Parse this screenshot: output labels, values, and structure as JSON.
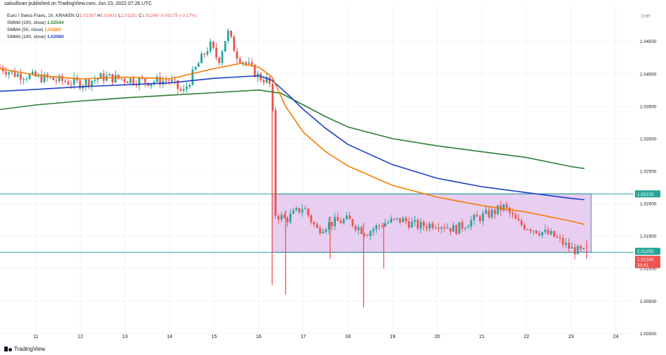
{
  "header": {
    "published_by": "salsullivan published on TradingView.com, Jun 23, 2022 07:26 UTC"
  },
  "legend": {
    "symbol": "Euro / Swiss Franc, 1h, KRAKEN",
    "ohlc": {
      "o_label": "O",
      "o": "1.01397",
      "h_label": "H",
      "h": "1.01431",
      "l_label": "L",
      "l": "1.01151",
      "c_label": "C",
      "c": "1.01240",
      "change": "-0.00175 (-0.17%)"
    },
    "ma200": {
      "label": "SMMA (200, close)",
      "value": "1.02544",
      "color": "#2e7d32"
    },
    "ma50": {
      "label": "SMMA (50, close)",
      "value": "1.01683",
      "color": "#f57c00"
    },
    "ma100": {
      "label": "SMMA (100, close)",
      "value": "1.02060",
      "color": "#1e40c8"
    }
  },
  "currency_label": "CHF",
  "footer": {
    "brand": "TradingView"
  },
  "colors": {
    "bull": "#26a69a",
    "bear": "#ef5350",
    "level": "#26a69a",
    "box_fill": "#e4c5ef",
    "box_border": "#5b7fa6",
    "axis_text": "#131722"
  },
  "chart_data": {
    "type": "line",
    "title": "Euro / Swiss Franc, 1h, KRAKEN",
    "x_ticks": [
      "11",
      "12",
      "13",
      "14",
      "15",
      "16",
      "17",
      "18",
      "19",
      "20",
      "21",
      "22",
      "23",
      "24"
    ],
    "y_ticks": [
      "1.04500",
      "1.04000",
      "1.03500",
      "1.03000",
      "1.02500",
      "1.02000",
      "1.01500",
      "1.01000",
      "1.00500",
      "1.00000"
    ],
    "ylim": [
      0.9995,
      1.0505
    ],
    "xlim": [
      10.2,
      24.4
    ],
    "price_labels": {
      "level_high": "1.02150",
      "ma_upper": "1.01255",
      "last": "1.01240",
      "countdown": "33:41"
    },
    "levels": [
      1.0215,
      1.0125
    ],
    "range_box": {
      "x_from": 16.3,
      "x_to": 23.45,
      "top": 1.0215,
      "bottom": 1.0125
    },
    "price_series": [
      {
        "x": 10.2,
        "y": 1.041
      },
      {
        "x": 10.5,
        "y": 1.04
      },
      {
        "x": 11.0,
        "y": 1.0395
      },
      {
        "x": 11.5,
        "y": 1.039
      },
      {
        "x": 12.0,
        "y": 1.0385
      },
      {
        "x": 12.5,
        "y": 1.0395
      },
      {
        "x": 13.0,
        "y": 1.0392
      },
      {
        "x": 13.5,
        "y": 1.0388
      },
      {
        "x": 14.0,
        "y": 1.039
      },
      {
        "x": 14.3,
        "y": 1.037
      },
      {
        "x": 14.6,
        "y": 1.041
      },
      {
        "x": 14.9,
        "y": 1.0445
      },
      {
        "x": 15.1,
        "y": 1.042
      },
      {
        "x": 15.3,
        "y": 1.0465
      },
      {
        "x": 15.5,
        "y": 1.043
      },
      {
        "x": 15.8,
        "y": 1.041
      },
      {
        "x": 16.0,
        "y": 1.0395
      },
      {
        "x": 16.2,
        "y": 1.039
      },
      {
        "x": 16.3,
        "y": 1.0375
      },
      {
        "x": 16.35,
        "y": 1.0185
      },
      {
        "x": 16.6,
        "y": 1.0175
      },
      {
        "x": 17.0,
        "y": 1.0195
      },
      {
        "x": 17.3,
        "y": 1.016
      },
      {
        "x": 17.6,
        "y": 1.017
      },
      {
        "x": 18.0,
        "y": 1.0175
      },
      {
        "x": 18.4,
        "y": 1.0155
      },
      {
        "x": 18.8,
        "y": 1.017
      },
      {
        "x": 19.2,
        "y": 1.0175
      },
      {
        "x": 19.6,
        "y": 1.0165
      },
      {
        "x": 20.0,
        "y": 1.017
      },
      {
        "x": 20.4,
        "y": 1.016
      },
      {
        "x": 20.8,
        "y": 1.0175
      },
      {
        "x": 21.2,
        "y": 1.0185
      },
      {
        "x": 21.5,
        "y": 1.0195
      },
      {
        "x": 21.8,
        "y": 1.017
      },
      {
        "x": 22.2,
        "y": 1.016
      },
      {
        "x": 22.6,
        "y": 1.015
      },
      {
        "x": 23.0,
        "y": 1.013
      },
      {
        "x": 23.3,
        "y": 1.0124
      }
    ],
    "series": [
      {
        "name": "SMMA (200, close)",
        "color": "#2e7d32",
        "points": [
          {
            "x": 10.2,
            "y": 1.0345
          },
          {
            "x": 11.0,
            "y": 1.0352
          },
          {
            "x": 12.0,
            "y": 1.0358
          },
          {
            "x": 13.0,
            "y": 1.0363
          },
          {
            "x": 14.0,
            "y": 1.0367
          },
          {
            "x": 15.0,
            "y": 1.0371
          },
          {
            "x": 16.0,
            "y": 1.0375
          },
          {
            "x": 16.5,
            "y": 1.037
          },
          {
            "x": 17.0,
            "y": 1.0352
          },
          {
            "x": 17.5,
            "y": 1.0334
          },
          {
            "x": 18.0,
            "y": 1.0318
          },
          {
            "x": 19.0,
            "y": 1.03
          },
          {
            "x": 20.0,
            "y": 1.0289
          },
          {
            "x": 21.0,
            "y": 1.028
          },
          {
            "x": 22.0,
            "y": 1.0271
          },
          {
            "x": 23.0,
            "y": 1.0257
          },
          {
            "x": 23.3,
            "y": 1.0254
          }
        ]
      },
      {
        "name": "SMMA (100, close)",
        "color": "#1e40c8",
        "points": [
          {
            "x": 10.2,
            "y": 1.0373
          },
          {
            "x": 11.0,
            "y": 1.0376
          },
          {
            "x": 12.0,
            "y": 1.038
          },
          {
            "x": 13.0,
            "y": 1.0383
          },
          {
            "x": 14.0,
            "y": 1.0386
          },
          {
            "x": 15.0,
            "y": 1.0393
          },
          {
            "x": 16.0,
            "y": 1.0397
          },
          {
            "x": 16.3,
            "y": 1.039
          },
          {
            "x": 16.7,
            "y": 1.0365
          },
          {
            "x": 17.0,
            "y": 1.0345
          },
          {
            "x": 17.5,
            "y": 1.0316
          },
          {
            "x": 18.0,
            "y": 1.0291
          },
          {
            "x": 19.0,
            "y": 1.026
          },
          {
            "x": 20.0,
            "y": 1.0239
          },
          {
            "x": 21.0,
            "y": 1.0226
          },
          {
            "x": 22.0,
            "y": 1.0217
          },
          {
            "x": 23.0,
            "y": 1.0208
          },
          {
            "x": 23.3,
            "y": 1.0206
          }
        ]
      },
      {
        "name": "SMMA (50, close)",
        "color": "#f57c00",
        "points": [
          {
            "x": 10.2,
            "y": 1.0408
          },
          {
            "x": 11.0,
            "y": 1.0398
          },
          {
            "x": 12.0,
            "y": 1.0392
          },
          {
            "x": 13.0,
            "y": 1.0395
          },
          {
            "x": 14.0,
            "y": 1.0392
          },
          {
            "x": 15.0,
            "y": 1.0408
          },
          {
            "x": 15.6,
            "y": 1.0416
          },
          {
            "x": 16.0,
            "y": 1.041
          },
          {
            "x": 16.3,
            "y": 1.0395
          },
          {
            "x": 16.6,
            "y": 1.035
          },
          {
            "x": 17.0,
            "y": 1.031
          },
          {
            "x": 17.5,
            "y": 1.028
          },
          {
            "x": 18.0,
            "y": 1.0258
          },
          {
            "x": 19.0,
            "y": 1.0228
          },
          {
            "x": 20.0,
            "y": 1.021
          },
          {
            "x": 21.0,
            "y": 1.0197
          },
          {
            "x": 22.0,
            "y": 1.0187
          },
          {
            "x": 23.0,
            "y": 1.0173
          },
          {
            "x": 23.3,
            "y": 1.0168
          }
        ]
      }
    ],
    "spikes": [
      {
        "x": 16.3,
        "low": 1.0075,
        "high": 1.0378
      },
      {
        "x": 16.6,
        "low": 1.006,
        "high": 1.019
      },
      {
        "x": 17.6,
        "low": 1.0115,
        "high": 1.018
      },
      {
        "x": 18.35,
        "low": 1.004,
        "high": 1.017
      },
      {
        "x": 18.8,
        "low": 1.01,
        "high": 1.017
      },
      {
        "x": 23.35,
        "low": 1.0115,
        "high": 1.0143
      }
    ]
  }
}
